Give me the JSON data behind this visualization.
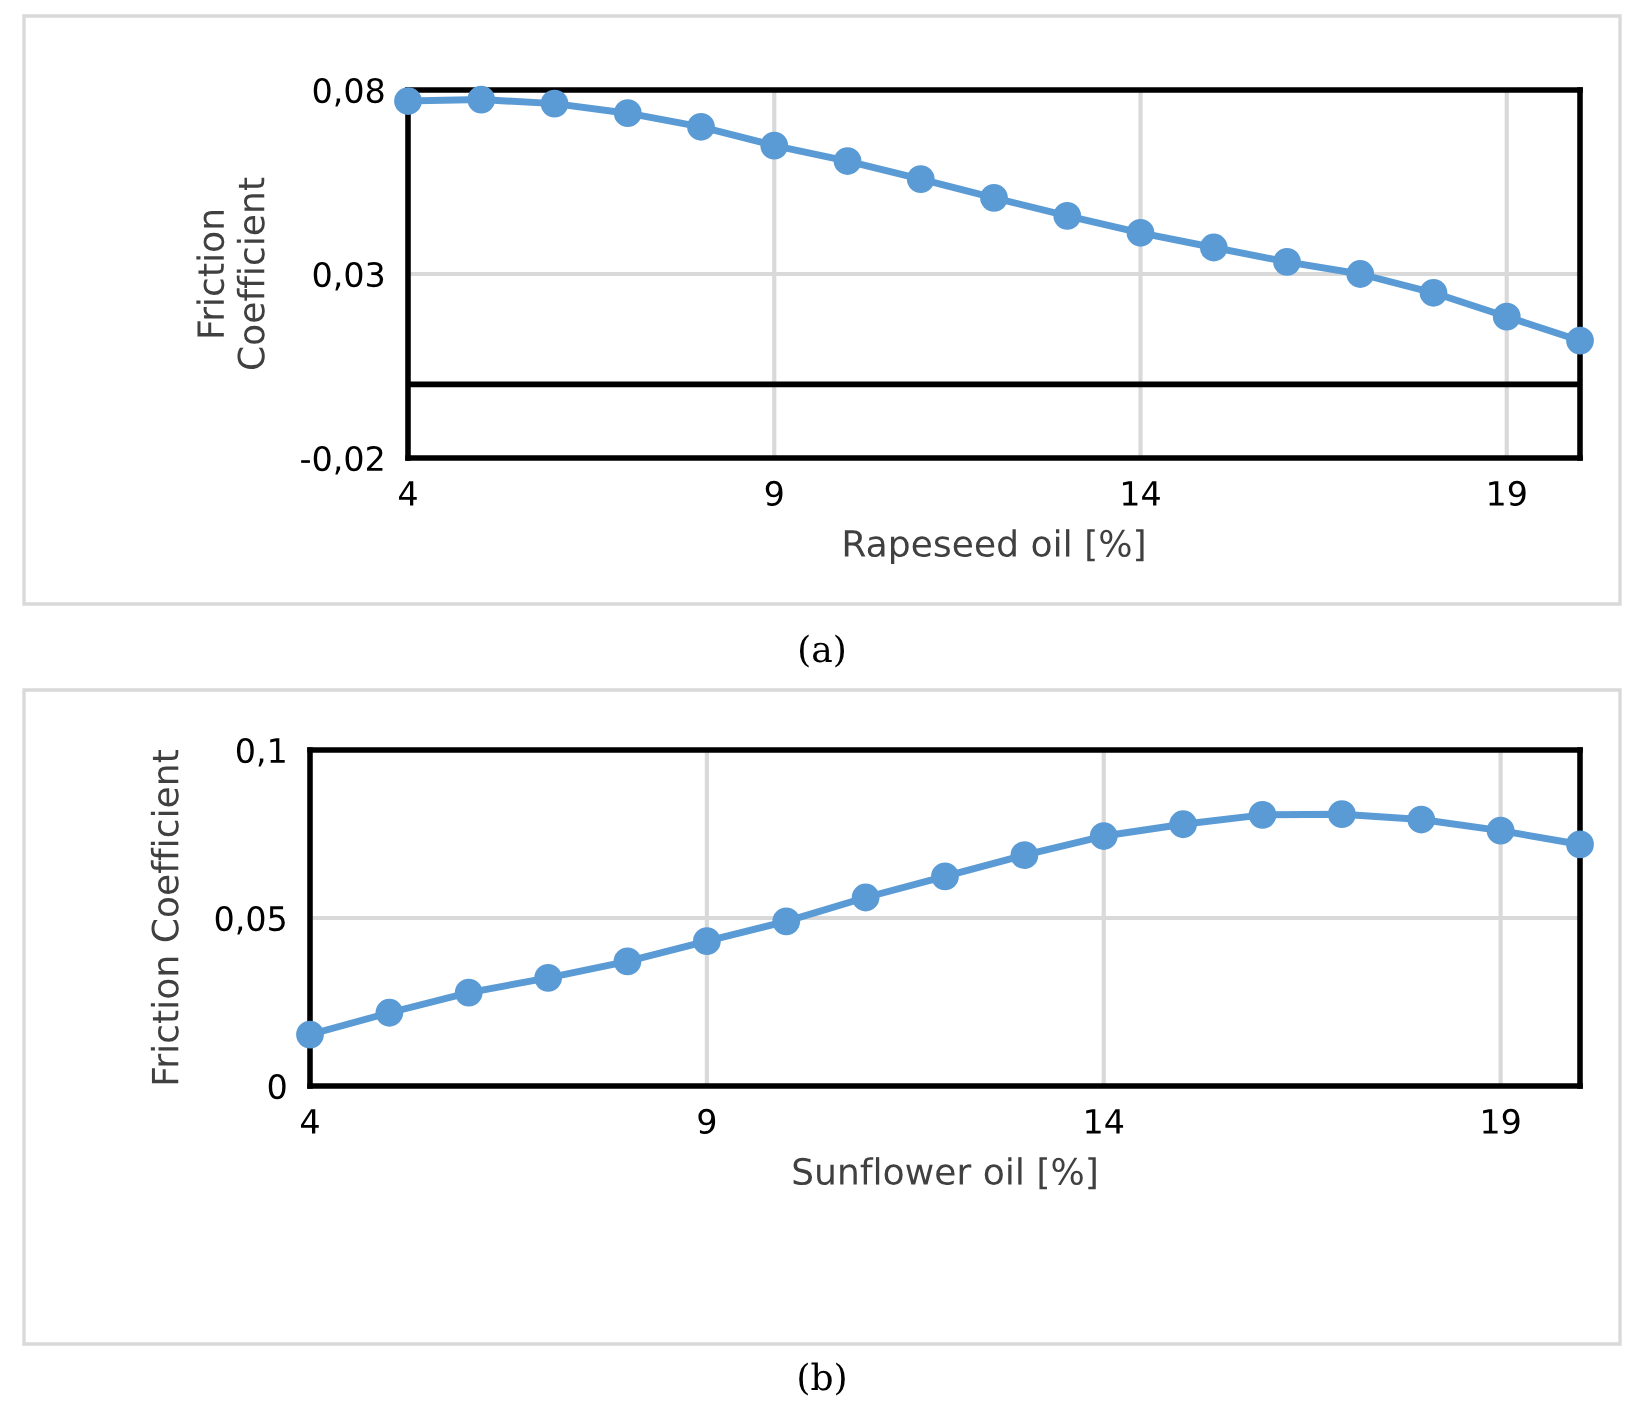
{
  "chart_data": [
    {
      "type": "line",
      "xlabel": "Rapeseed oil [%]",
      "ylabel": "Friction\nCoefficient",
      "annotations": [
        "(a)"
      ],
      "x": [
        4,
        5,
        6,
        7,
        8,
        9,
        10,
        11,
        12,
        13,
        14,
        15,
        16,
        17,
        18,
        19,
        20
      ],
      "series": [
        {
          "color": "#5b9bd5",
          "values": [
            0.077,
            0.0774,
            0.0763,
            0.0737,
            0.07,
            0.0649,
            0.0607,
            0.0558,
            0.0507,
            0.0458,
            0.0412,
            0.0372,
            0.0333,
            0.03,
            0.0249,
            0.0184,
            0.0119
          ]
        }
      ],
      "xlim": [
        4,
        20
      ],
      "xticks": [
        4,
        9,
        14,
        19
      ],
      "ylim": [
        -0.02,
        0.08
      ],
      "yticks": [
        {
          "value": -0.02,
          "label": "-0,02"
        },
        {
          "value": 0.03,
          "label": "0,03"
        },
        {
          "value": 0.08,
          "label": "0,08"
        }
      ],
      "ref_lines": [
        {
          "axis": "y",
          "value": 0,
          "color": "#000000"
        }
      ],
      "grid": true,
      "marker": "circle",
      "line_style": "solid"
    },
    {
      "type": "line",
      "xlabel": "Sunflower oil [%]",
      "ylabel": "Friction Coefficient",
      "annotations": [
        "(b)"
      ],
      "x": [
        4,
        5,
        6,
        7,
        8,
        9,
        10,
        11,
        12,
        13,
        14,
        15,
        16,
        17,
        18,
        19,
        20
      ],
      "series": [
        {
          "color": "#5b9bd5",
          "values": [
            0.0153,
            0.0218,
            0.0278,
            0.0322,
            0.0371,
            0.0431,
            0.049,
            0.0561,
            0.0624,
            0.0687,
            0.0744,
            0.0779,
            0.0807,
            0.0809,
            0.0793,
            0.076,
            0.0719
          ]
        }
      ],
      "xlim": [
        4,
        20
      ],
      "xticks": [
        4,
        9,
        14,
        19
      ],
      "ylim": [
        0,
        0.1
      ],
      "yticks": [
        0,
        {
          "value": 0.05,
          "label": "0,05"
        },
        {
          "value": 0.1,
          "label": "0,1"
        }
      ],
      "grid": true,
      "marker": "circle",
      "line_style": "solid"
    }
  ]
}
